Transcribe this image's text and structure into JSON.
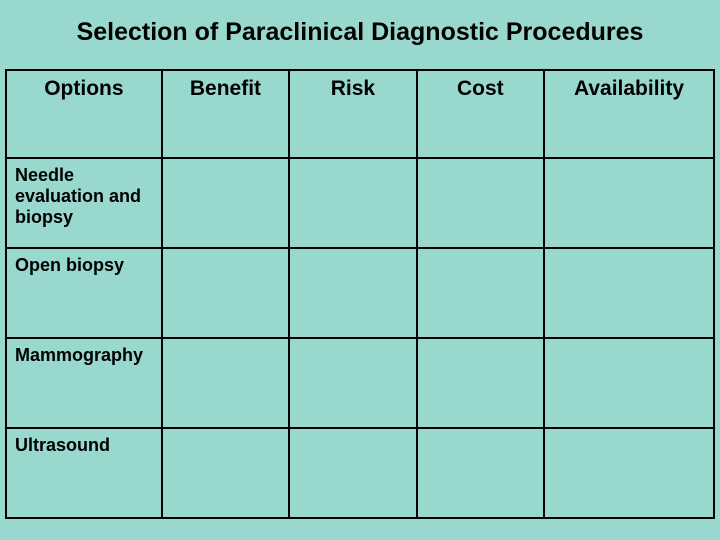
{
  "slide": {
    "title": "Selection of Paraclinical Diagnostic Procedures",
    "background_color": "#99d8cf",
    "border_color": "#000000",
    "text_color": "#000000",
    "title_fontsize": 25,
    "header_fontsize": 21,
    "cell_fontsize": 18,
    "table": {
      "columns": [
        "Options",
        "Benefit",
        "Risk",
        "Cost",
        "Availability"
      ],
      "column_widths_pct": [
        22,
        18,
        18,
        18,
        24
      ],
      "rows": [
        [
          "Needle evaluation and biopsy",
          "",
          "",
          "",
          ""
        ],
        [
          "Open biopsy",
          "",
          "",
          "",
          ""
        ],
        [
          "Mammography",
          "",
          "",
          "",
          ""
        ],
        [
          "Ultrasound",
          "",
          "",
          "",
          ""
        ]
      ]
    }
  }
}
